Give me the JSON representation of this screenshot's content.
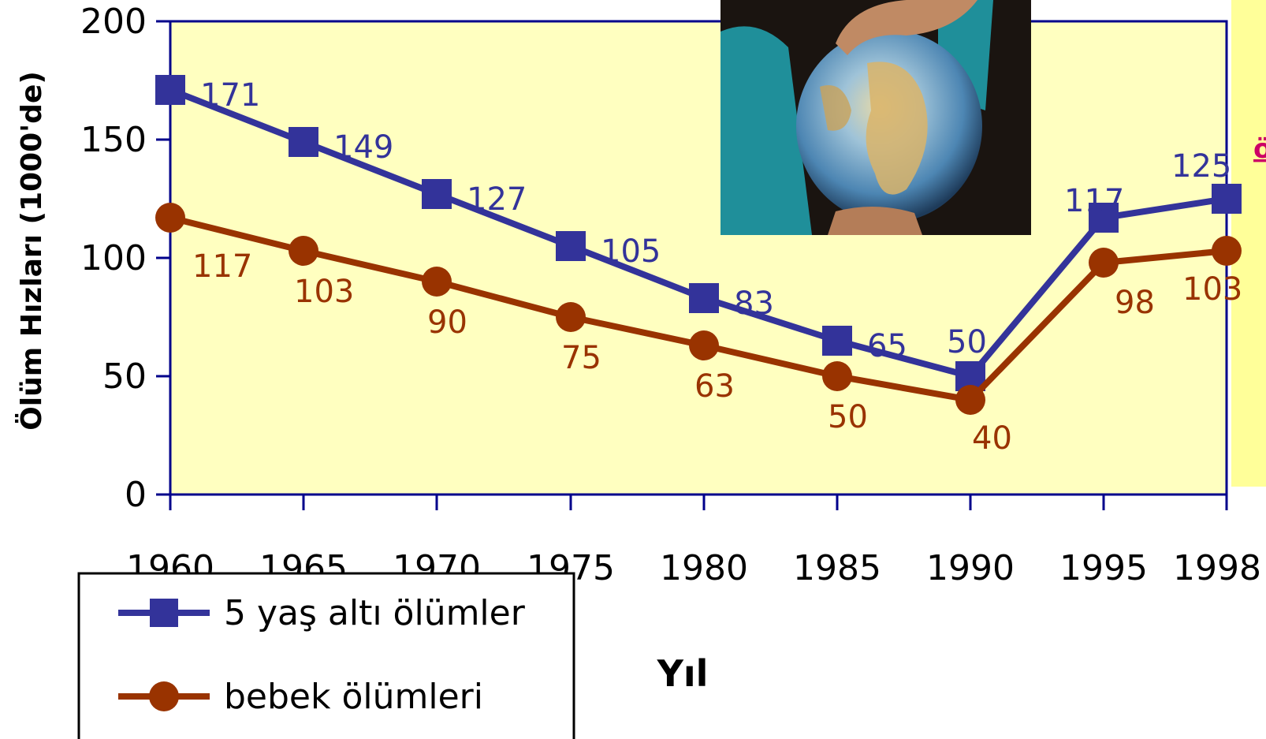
{
  "chart_data": {
    "type": "line",
    "categories": [
      "1960",
      "1965",
      "1970",
      "1975",
      "1980",
      "1985",
      "1990",
      "1995",
      "1998"
    ],
    "series": [
      {
        "name": "5 yaş altı ölümler",
        "values": [
          171,
          149,
          127,
          105,
          83,
          65,
          50,
          117,
          125
        ],
        "color": "#33339a",
        "marker": "square"
      },
      {
        "name": "bebek ölümleri",
        "values": [
          117,
          103,
          90,
          75,
          63,
          50,
          40,
          98,
          103
        ],
        "color": "#993300",
        "marker": "circle"
      }
    ],
    "ylabel": "Ölüm Hızları (1000'de)",
    "xlabel": "Yıl",
    "ylim": [
      0,
      200
    ],
    "yticks": [
      "0",
      "50",
      "100",
      "150",
      "200"
    ],
    "grid": false,
    "legend_position": "bottom-left",
    "plot_background": "#ffffc0",
    "axis_color": "#00008b"
  },
  "side_panel": {
    "text": "ö",
    "background": "#ffff99",
    "text_color": "#cc0066"
  }
}
